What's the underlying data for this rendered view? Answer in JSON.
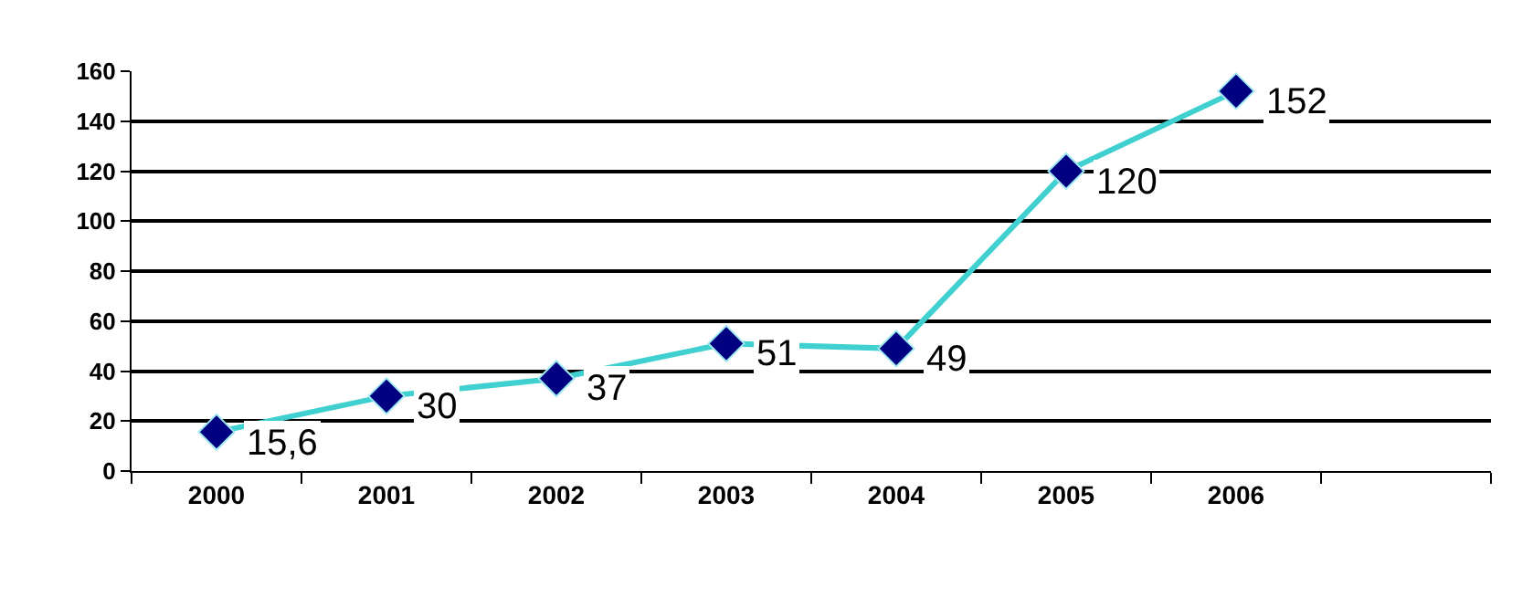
{
  "chart_data": {
    "type": "line",
    "categories": [
      "2000",
      "2001",
      "2002",
      "2003",
      "2004",
      "2005",
      "2006",
      null
    ],
    "series": [
      {
        "color": "#40d0d0",
        "values": [
          15.6,
          30,
          37,
          51,
          49,
          120,
          152,
          null
        ],
        "value_labels": [
          "15,6",
          "30",
          "37",
          "51",
          "49",
          "120",
          "152",
          null
        ]
      }
    ],
    "marker": "diamond",
    "line_style": "solid",
    "ylim": [
      0,
      160
    ],
    "yticks": [
      0,
      20,
      40,
      60,
      80,
      100,
      120,
      140,
      160
    ],
    "grid": "y",
    "legend": false
  }
}
